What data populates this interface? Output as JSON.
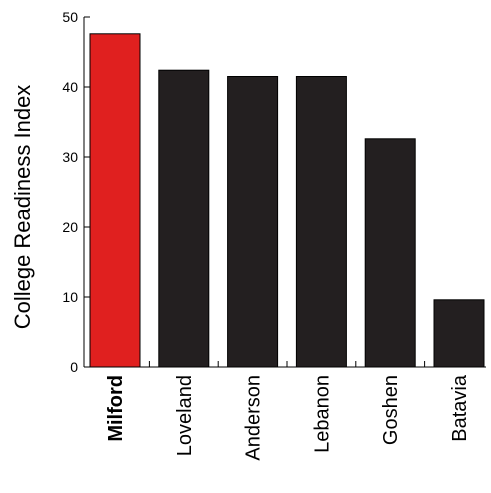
{
  "chart_data": {
    "type": "bar",
    "title": "",
    "xlabel": "",
    "ylabel": "College Readiness Index",
    "categories": [
      "Milford",
      "Loveland",
      "Anderson",
      "Lebanon",
      "Goshen",
      "Batavia"
    ],
    "values": [
      47.6,
      42.4,
      41.5,
      41.5,
      32.6,
      9.6
    ],
    "highlight": "Milford",
    "ylim": [
      0,
      50
    ],
    "yticks": [
      0,
      10,
      20,
      30,
      40,
      50
    ],
    "grid": false,
    "colors": {
      "highlight": "#e0201f",
      "bar": "#231f20",
      "axis": "#000000"
    }
  }
}
